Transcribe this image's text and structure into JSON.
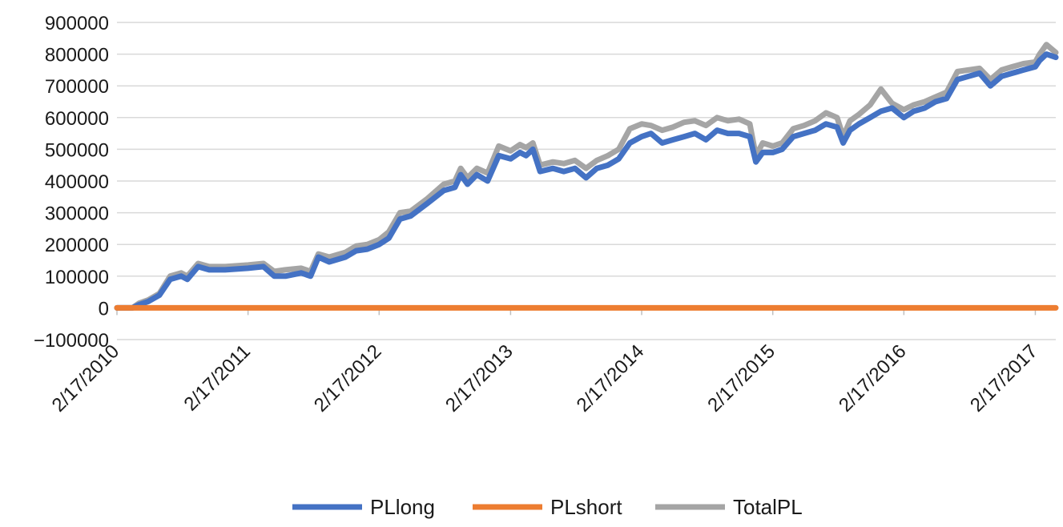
{
  "chart_data": {
    "type": "line",
    "title": "",
    "xlabel": "",
    "ylabel": "",
    "x_ticks": [
      "2/17/2010",
      "2/17/2011",
      "2/17/2012",
      "2/17/2013",
      "2/17/2014",
      "2/17/2015",
      "2/17/2016",
      "2/17/2017"
    ],
    "x_range": [
      "2010-02-17",
      "2017-04-15"
    ],
    "ylim": [
      -100000,
      900000
    ],
    "y_ticks": [
      -100000,
      0,
      100000,
      200000,
      300000,
      400000,
      500000,
      600000,
      700000,
      800000,
      900000
    ],
    "y_tick_labels": [
      "−100000",
      "0",
      "100000",
      "200000",
      "300000",
      "400000",
      "500000",
      "600000",
      "700000",
      "800000",
      "900000"
    ],
    "grid": "horizontal",
    "legend_position": "bottom",
    "colors": {
      "PLlong": "#4472c4",
      "PLshort": "#ed7d31",
      "TotalPL": "#a5a5a5",
      "grid": "#d9d9d9",
      "axis": "#bfbfbf"
    },
    "series": [
      {
        "name": "PLlong",
        "points": [
          [
            "2010-02-17",
            0
          ],
          [
            "2010-04-01",
            0
          ],
          [
            "2010-04-20",
            10000
          ],
          [
            "2010-05-15",
            20000
          ],
          [
            "2010-06-15",
            40000
          ],
          [
            "2010-07-15",
            90000
          ],
          [
            "2010-08-15",
            100000
          ],
          [
            "2010-09-01",
            90000
          ],
          [
            "2010-10-01",
            130000
          ],
          [
            "2010-11-01",
            120000
          ],
          [
            "2010-12-15",
            120000
          ],
          [
            "2011-02-17",
            125000
          ],
          [
            "2011-04-01",
            130000
          ],
          [
            "2011-05-01",
            100000
          ],
          [
            "2011-06-01",
            100000
          ],
          [
            "2011-07-15",
            110000
          ],
          [
            "2011-08-10",
            100000
          ],
          [
            "2011-09-01",
            160000
          ],
          [
            "2011-10-01",
            145000
          ],
          [
            "2011-11-15",
            160000
          ],
          [
            "2011-12-15",
            180000
          ],
          [
            "2012-01-15",
            185000
          ],
          [
            "2012-02-17",
            200000
          ],
          [
            "2012-03-15",
            220000
          ],
          [
            "2012-04-15",
            280000
          ],
          [
            "2012-05-15",
            290000
          ],
          [
            "2012-07-01",
            330000
          ],
          [
            "2012-08-15",
            370000
          ],
          [
            "2012-09-15",
            380000
          ],
          [
            "2012-10-01",
            420000
          ],
          [
            "2012-10-20",
            390000
          ],
          [
            "2012-11-15",
            420000
          ],
          [
            "2012-12-15",
            400000
          ],
          [
            "2013-01-15",
            480000
          ],
          [
            "2013-02-17",
            470000
          ],
          [
            "2013-03-15",
            490000
          ],
          [
            "2013-04-01",
            480000
          ],
          [
            "2013-04-20",
            500000
          ],
          [
            "2013-05-10",
            430000
          ],
          [
            "2013-06-15",
            440000
          ],
          [
            "2013-07-15",
            430000
          ],
          [
            "2013-08-15",
            440000
          ],
          [
            "2013-09-15",
            410000
          ],
          [
            "2013-10-15",
            440000
          ],
          [
            "2013-11-15",
            450000
          ],
          [
            "2013-12-15",
            470000
          ],
          [
            "2014-01-15",
            520000
          ],
          [
            "2014-02-17",
            540000
          ],
          [
            "2014-03-15",
            550000
          ],
          [
            "2014-04-15",
            520000
          ],
          [
            "2014-05-15",
            530000
          ],
          [
            "2014-06-15",
            540000
          ],
          [
            "2014-07-15",
            550000
          ],
          [
            "2014-08-15",
            530000
          ],
          [
            "2014-09-15",
            560000
          ],
          [
            "2014-10-15",
            550000
          ],
          [
            "2014-11-15",
            550000
          ],
          [
            "2014-12-15",
            540000
          ],
          [
            "2015-01-01",
            460000
          ],
          [
            "2015-01-20",
            490000
          ],
          [
            "2015-02-17",
            490000
          ],
          [
            "2015-03-15",
            500000
          ],
          [
            "2015-04-15",
            540000
          ],
          [
            "2015-05-15",
            550000
          ],
          [
            "2015-06-15",
            560000
          ],
          [
            "2015-07-15",
            580000
          ],
          [
            "2015-08-15",
            570000
          ],
          [
            "2015-09-01",
            520000
          ],
          [
            "2015-09-20",
            560000
          ],
          [
            "2015-10-15",
            580000
          ],
          [
            "2015-11-15",
            600000
          ],
          [
            "2015-12-15",
            620000
          ],
          [
            "2016-01-15",
            630000
          ],
          [
            "2016-02-17",
            600000
          ],
          [
            "2016-03-15",
            620000
          ],
          [
            "2016-04-15",
            630000
          ],
          [
            "2016-05-15",
            650000
          ],
          [
            "2016-06-15",
            660000
          ],
          [
            "2016-07-15",
            720000
          ],
          [
            "2016-08-15",
            730000
          ],
          [
            "2016-09-15",
            740000
          ],
          [
            "2016-10-15",
            700000
          ],
          [
            "2016-11-15",
            730000
          ],
          [
            "2016-12-15",
            740000
          ],
          [
            "2017-01-15",
            750000
          ],
          [
            "2017-02-17",
            760000
          ],
          [
            "2017-03-01",
            780000
          ],
          [
            "2017-03-20",
            800000
          ],
          [
            "2017-04-15",
            790000
          ]
        ]
      },
      {
        "name": "PLshort",
        "points": [
          [
            "2010-02-17",
            0
          ],
          [
            "2017-04-15",
            0
          ]
        ]
      },
      {
        "name": "TotalPL",
        "points": [
          [
            "2010-02-17",
            0
          ],
          [
            "2010-04-01",
            0
          ],
          [
            "2010-04-20",
            15000
          ],
          [
            "2010-05-15",
            25000
          ],
          [
            "2010-06-15",
            45000
          ],
          [
            "2010-07-15",
            100000
          ],
          [
            "2010-08-15",
            110000
          ],
          [
            "2010-09-01",
            100000
          ],
          [
            "2010-10-01",
            140000
          ],
          [
            "2010-11-01",
            130000
          ],
          [
            "2010-12-15",
            130000
          ],
          [
            "2011-02-17",
            135000
          ],
          [
            "2011-04-01",
            140000
          ],
          [
            "2011-05-01",
            115000
          ],
          [
            "2011-06-01",
            120000
          ],
          [
            "2011-07-15",
            125000
          ],
          [
            "2011-08-10",
            115000
          ],
          [
            "2011-09-01",
            170000
          ],
          [
            "2011-10-01",
            160000
          ],
          [
            "2011-11-15",
            175000
          ],
          [
            "2011-12-15",
            195000
          ],
          [
            "2012-01-15",
            200000
          ],
          [
            "2012-02-17",
            215000
          ],
          [
            "2012-03-15",
            240000
          ],
          [
            "2012-04-15",
            300000
          ],
          [
            "2012-05-15",
            305000
          ],
          [
            "2012-07-01",
            345000
          ],
          [
            "2012-08-15",
            390000
          ],
          [
            "2012-09-15",
            400000
          ],
          [
            "2012-10-01",
            440000
          ],
          [
            "2012-10-20",
            410000
          ],
          [
            "2012-11-15",
            440000
          ],
          [
            "2012-12-15",
            425000
          ],
          [
            "2013-01-15",
            510000
          ],
          [
            "2013-02-17",
            495000
          ],
          [
            "2013-03-15",
            515000
          ],
          [
            "2013-04-01",
            505000
          ],
          [
            "2013-04-20",
            520000
          ],
          [
            "2013-05-10",
            450000
          ],
          [
            "2013-06-15",
            460000
          ],
          [
            "2013-07-15",
            455000
          ],
          [
            "2013-08-15",
            465000
          ],
          [
            "2013-09-15",
            440000
          ],
          [
            "2013-10-15",
            465000
          ],
          [
            "2013-11-15",
            480000
          ],
          [
            "2013-12-15",
            500000
          ],
          [
            "2014-01-15",
            565000
          ],
          [
            "2014-02-17",
            580000
          ],
          [
            "2014-03-15",
            575000
          ],
          [
            "2014-04-15",
            560000
          ],
          [
            "2014-05-15",
            570000
          ],
          [
            "2014-06-15",
            585000
          ],
          [
            "2014-07-15",
            590000
          ],
          [
            "2014-08-15",
            575000
          ],
          [
            "2014-09-15",
            600000
          ],
          [
            "2014-10-15",
            590000
          ],
          [
            "2014-11-15",
            595000
          ],
          [
            "2014-12-15",
            580000
          ],
          [
            "2015-01-01",
            480000
          ],
          [
            "2015-01-20",
            520000
          ],
          [
            "2015-02-17",
            510000
          ],
          [
            "2015-03-15",
            520000
          ],
          [
            "2015-04-15",
            565000
          ],
          [
            "2015-05-15",
            575000
          ],
          [
            "2015-06-15",
            590000
          ],
          [
            "2015-07-15",
            615000
          ],
          [
            "2015-08-15",
            600000
          ],
          [
            "2015-09-01",
            540000
          ],
          [
            "2015-09-20",
            590000
          ],
          [
            "2015-10-15",
            610000
          ],
          [
            "2015-11-15",
            640000
          ],
          [
            "2015-12-15",
            690000
          ],
          [
            "2016-01-15",
            645000
          ],
          [
            "2016-02-17",
            625000
          ],
          [
            "2016-03-15",
            640000
          ],
          [
            "2016-04-15",
            650000
          ],
          [
            "2016-05-15",
            665000
          ],
          [
            "2016-06-15",
            680000
          ],
          [
            "2016-07-15",
            745000
          ],
          [
            "2016-08-15",
            750000
          ],
          [
            "2016-09-15",
            755000
          ],
          [
            "2016-10-15",
            720000
          ],
          [
            "2016-11-15",
            750000
          ],
          [
            "2016-12-15",
            760000
          ],
          [
            "2017-01-15",
            770000
          ],
          [
            "2017-02-17",
            775000
          ],
          [
            "2017-03-01",
            800000
          ],
          [
            "2017-03-20",
            830000
          ],
          [
            "2017-04-15",
            805000
          ]
        ]
      }
    ]
  },
  "legend": [
    {
      "label": "PLlong",
      "color": "#4472c4"
    },
    {
      "label": "PLshort",
      "color": "#ed7d31"
    },
    {
      "label": "TotalPL",
      "color": "#a5a5a5"
    }
  ]
}
